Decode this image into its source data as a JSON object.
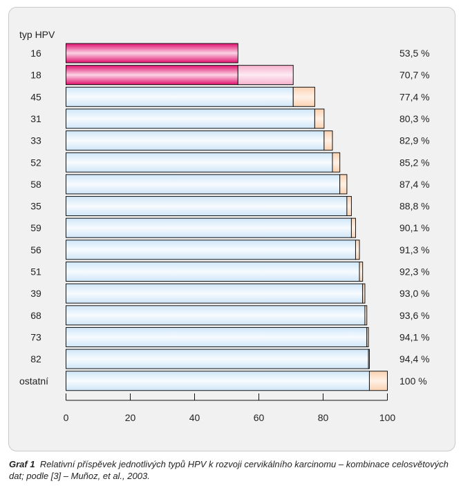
{
  "chart_data": {
    "type": "bar",
    "orientation": "horizontal",
    "stacked": true,
    "category_header": "typ HPV",
    "categories": [
      "16",
      "18",
      "45",
      "31",
      "33",
      "52",
      "58",
      "35",
      "59",
      "56",
      "51",
      "39",
      "68",
      "73",
      "82",
      "ostatní"
    ],
    "cumulative": [
      53.5,
      70.7,
      77.4,
      80.3,
      82.9,
      85.2,
      87.4,
      88.8,
      90.1,
      91.3,
      92.3,
      93.0,
      93.6,
      94.1,
      94.4,
      100
    ],
    "value_labels": [
      "53,5 %",
      "70,7 %",
      "77,4 %",
      "80,3 %",
      "82,9 %",
      "85,2 %",
      "87,4 %",
      "88,8 %",
      "90,1 %",
      "91,3 %",
      "92,3 %",
      "93,0 %",
      "93,6 %",
      "94,1 %",
      "94,4 %",
      "100 %"
    ],
    "xlim": [
      0,
      100
    ],
    "xticks": [
      0,
      20,
      40,
      60,
      80,
      100
    ],
    "grid": false,
    "colors": {
      "hr_base": "#e0106e",
      "hr_base_light": "#fbd3e4",
      "hr_increment": "#fcd9e8",
      "base": "#e4f1fb",
      "base_edge": "#b7d6ef",
      "increment": "#fde2cc",
      "outline": "#111111"
    }
  },
  "caption": {
    "label": "Graf 1",
    "text": "Relativní příspěvek jednotlivých typů HPV k rozvoji cervikálního karcinomu – kombinace celosvětových dat; podle [3] – Muñoz, et al., 2003."
  }
}
